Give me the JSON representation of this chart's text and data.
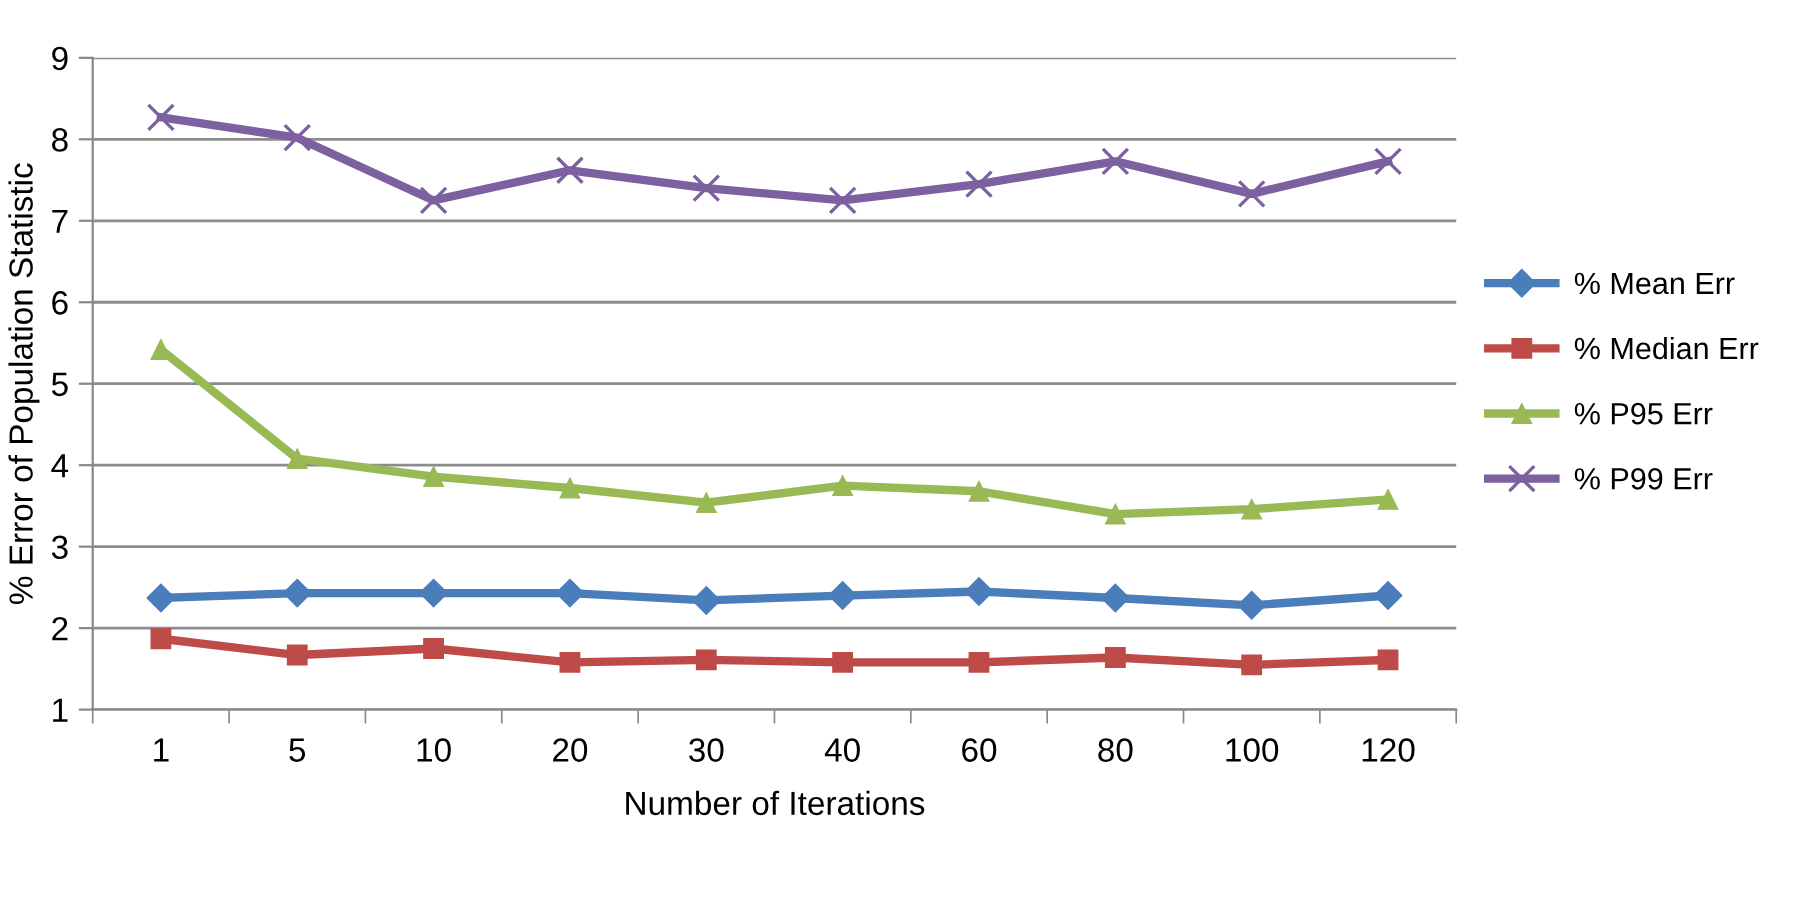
{
  "chart_data": {
    "type": "line",
    "xlabel": "Number of Iterations",
    "ylabel": "% Error of Population Statistic",
    "categories": [
      "1",
      "5",
      "10",
      "20",
      "30",
      "40",
      "60",
      "80",
      "100",
      "120"
    ],
    "series": [
      {
        "name": "% Mean Err",
        "color": "#4a7ebb",
        "marker": "diamond",
        "values": [
          2.37,
          2.43,
          2.43,
          2.43,
          2.34,
          2.4,
          2.45,
          2.37,
          2.28,
          2.4
        ]
      },
      {
        "name": "% Median Err",
        "color": "#be4b48",
        "marker": "square",
        "values": [
          1.87,
          1.67,
          1.75,
          1.58,
          1.61,
          1.58,
          1.58,
          1.64,
          1.55,
          1.61
        ]
      },
      {
        "name": "% P95 Err",
        "color": "#98b954",
        "marker": "triangle",
        "values": [
          5.42,
          4.08,
          3.86,
          3.72,
          3.54,
          3.75,
          3.68,
          3.4,
          3.46,
          3.58
        ]
      },
      {
        "name": "% P99 Err",
        "color": "#7d60a0",
        "marker": "cross",
        "values": [
          8.27,
          8.02,
          7.25,
          7.62,
          7.4,
          7.25,
          7.45,
          7.73,
          7.33,
          7.73
        ]
      }
    ],
    "ylim": [
      1,
      9
    ],
    "yticks": [
      1,
      2,
      3,
      4,
      5,
      6,
      7,
      8,
      9
    ],
    "grid": "y",
    "legend": "right",
    "line_style": "solid"
  }
}
